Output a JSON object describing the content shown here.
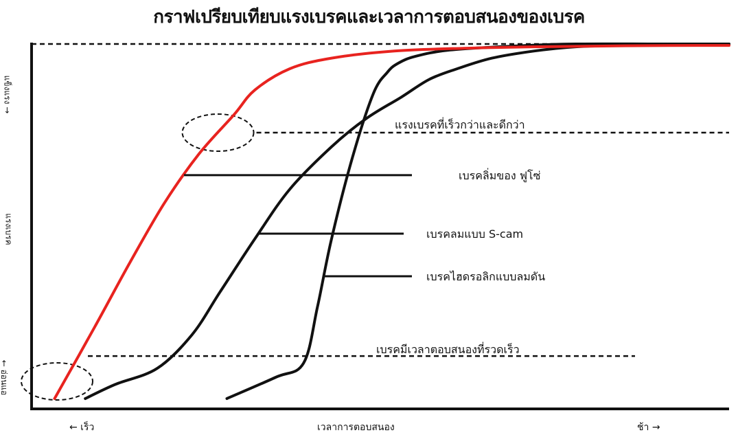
{
  "chart_data": {
    "type": "line",
    "title": "กราฟเปรียบเทียบแรงเบรคและเวลาการตอบสนองของเบรค",
    "xlabel": "เวลาการตอบสนอง",
    "x_left_label": "← เร็ว",
    "x_right_label": "ช้า →",
    "ylabel": "แรงเบรค",
    "y_top_label": "แข็งแรง →",
    "y_bottom_label": "← อ่อนแอ",
    "grid": false,
    "xlim": [
      0,
      100
    ],
    "ylim": [
      0,
      100
    ],
    "reference_lines": [
      {
        "label": "แรงเบรคที่เร็วกว่าและดีกว่า",
        "y": 75
      },
      {
        "label": "เบรคมีเวลาตอบสนองที่รวดเร็ว",
        "y": 12
      }
    ],
    "max_line": {
      "y": 100
    },
    "series": [
      {
        "name": "เบรคลิ่มของ ฟูโซ่",
        "color": "#e8231f",
        "x": [
          3.3,
          9,
          14,
          19,
          24,
          29,
          32,
          37,
          43,
          52,
          62,
          72,
          85,
          100
        ],
        "y": [
          0,
          20,
          38,
          55,
          69,
          80,
          87,
          93,
          96,
          98,
          98.8,
          99.2,
          99.5,
          99.6
        ]
      },
      {
        "name": "เบรคลมแบบ S-cam",
        "color": "#111111",
        "x": [
          7.7,
          12,
          18,
          23,
          27,
          32,
          37,
          43,
          48,
          53,
          57,
          61,
          66,
          72,
          78,
          86,
          93,
          100
        ],
        "y": [
          0,
          4,
          8.5,
          18,
          30,
          45,
          59,
          71,
          79,
          85,
          90,
          93,
          96,
          98,
          99.2,
          99.7,
          99.9,
          100
        ]
      },
      {
        "name": "เบรคไฮดรอลิกแบบลมดัน",
        "color": "#111111",
        "x": [
          28,
          35,
          39,
          41,
          43,
          46,
          49,
          51,
          52.5,
          55,
          60,
          70,
          78,
          90,
          100
        ],
        "y": [
          0,
          6,
          10,
          26,
          45,
          68,
          86,
          92,
          94.5,
          96.5,
          98.3,
          99.5,
          100,
          100,
          100
        ]
      }
    ],
    "annotations": [
      {
        "text": "แรงเบรคที่เร็วกว่าและดีกว่า",
        "target": "upper reference line"
      },
      {
        "text": "เบรคมีเวลาตอบสนองที่รวดเร็ว",
        "target": "lower reference line"
      }
    ]
  }
}
